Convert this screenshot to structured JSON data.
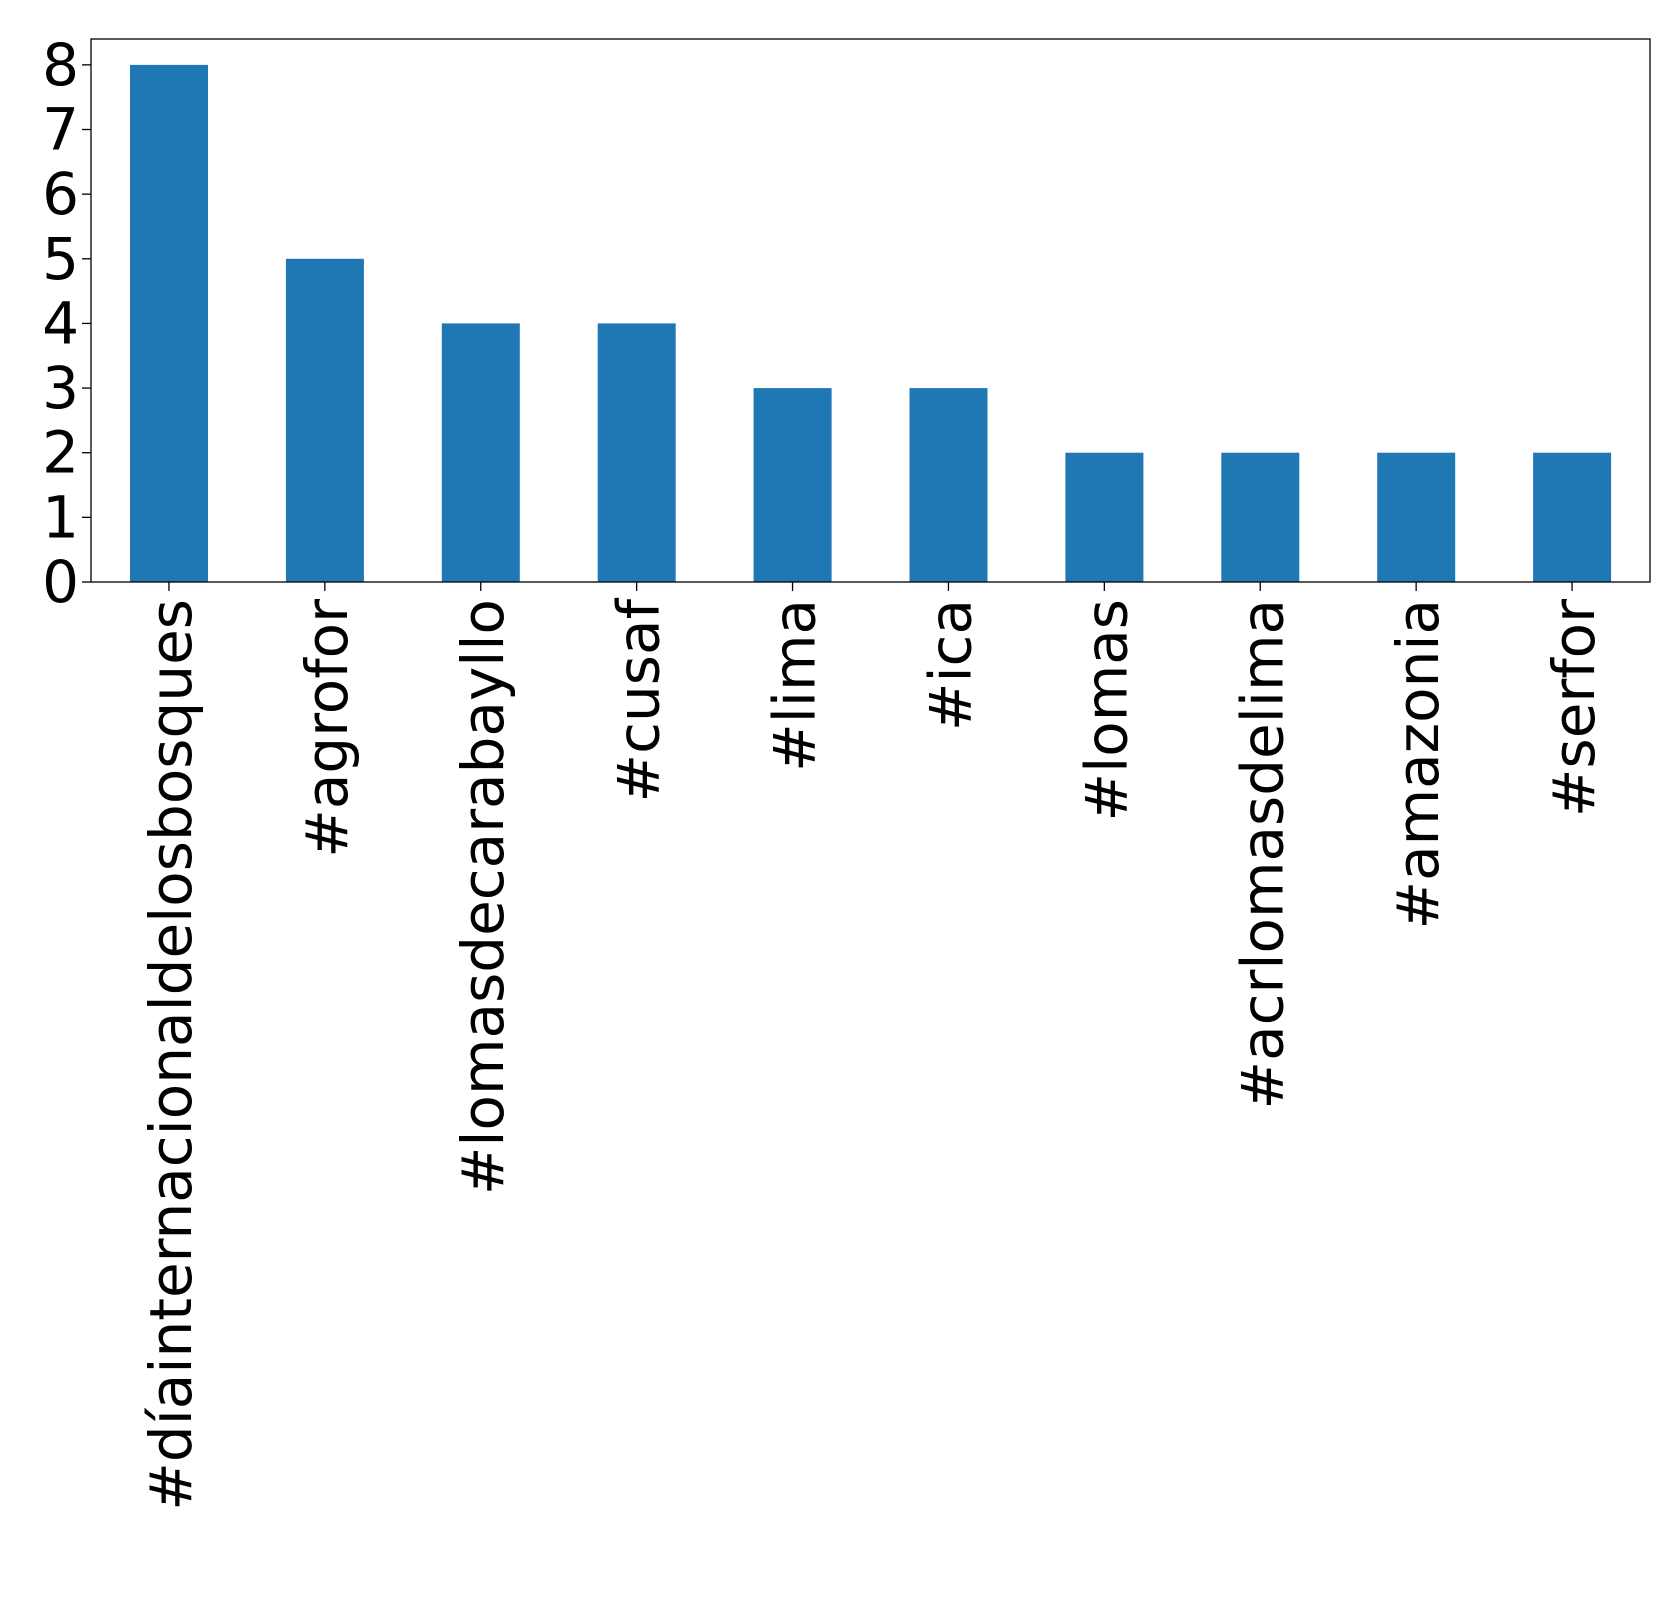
{
  "chart_data": {
    "type": "bar",
    "categories": [
      "#díainternacionaldelosbosques",
      "#agrofor",
      "#lomasdecarabayllo",
      "#cusaf",
      "#lima",
      "#ica",
      "#lomas",
      "#acrlomasdelima",
      "#amazonia",
      "#serfor"
    ],
    "values": [
      8,
      5,
      4,
      4,
      3,
      3,
      2,
      2,
      2,
      2
    ],
    "ylim": [
      0,
      8.4
    ],
    "yticks": [
      0,
      1,
      2,
      3,
      4,
      5,
      6,
      7,
      8
    ],
    "title": "",
    "xlabel": "",
    "ylabel": "",
    "bar_color": "#1f77b4",
    "grid": false,
    "legend": "none",
    "x_tick_rotation": "vertical"
  }
}
